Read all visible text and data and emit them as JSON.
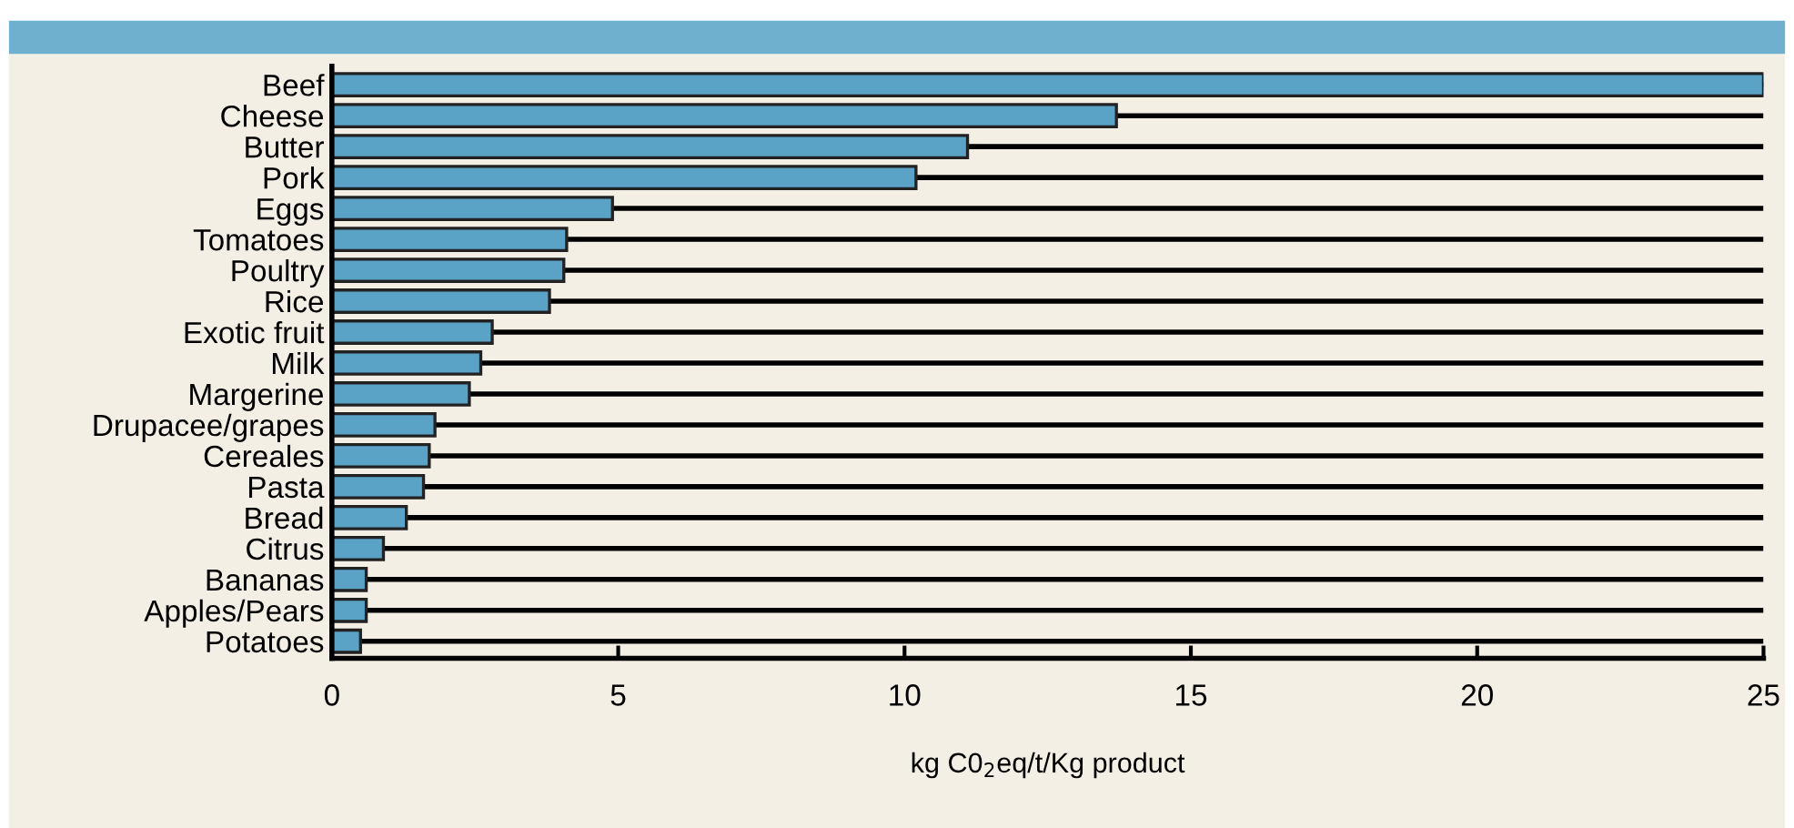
{
  "chart_data": {
    "type": "bar",
    "orientation": "horizontal",
    "categories": [
      "Beef",
      "Cheese",
      "Butter",
      "Pork",
      "Eggs",
      "Tomatoes",
      "Poultry",
      "Rice",
      "Exotic fruit",
      "Milk",
      "Margerine",
      "Drupacee/grapes",
      "Cereales",
      "Pasta",
      "Bread",
      "Citrus",
      "Bananas",
      "Apples/Pears",
      "Potatoes"
    ],
    "values": [
      25,
      13.7,
      11.1,
      10.2,
      4.9,
      4.1,
      4.05,
      3.8,
      2.8,
      2.6,
      2.4,
      1.8,
      1.7,
      1.6,
      1.3,
      0.9,
      0.6,
      0.6,
      0.5
    ],
    "color": "#5aa2c6",
    "xlabel": "kg C0$_{2}$eq/t/Kg product",
    "xlim": [
      0,
      25
    ],
    "xticks": [
      0,
      5,
      10,
      15,
      20,
      25
    ],
    "grid": "y"
  }
}
